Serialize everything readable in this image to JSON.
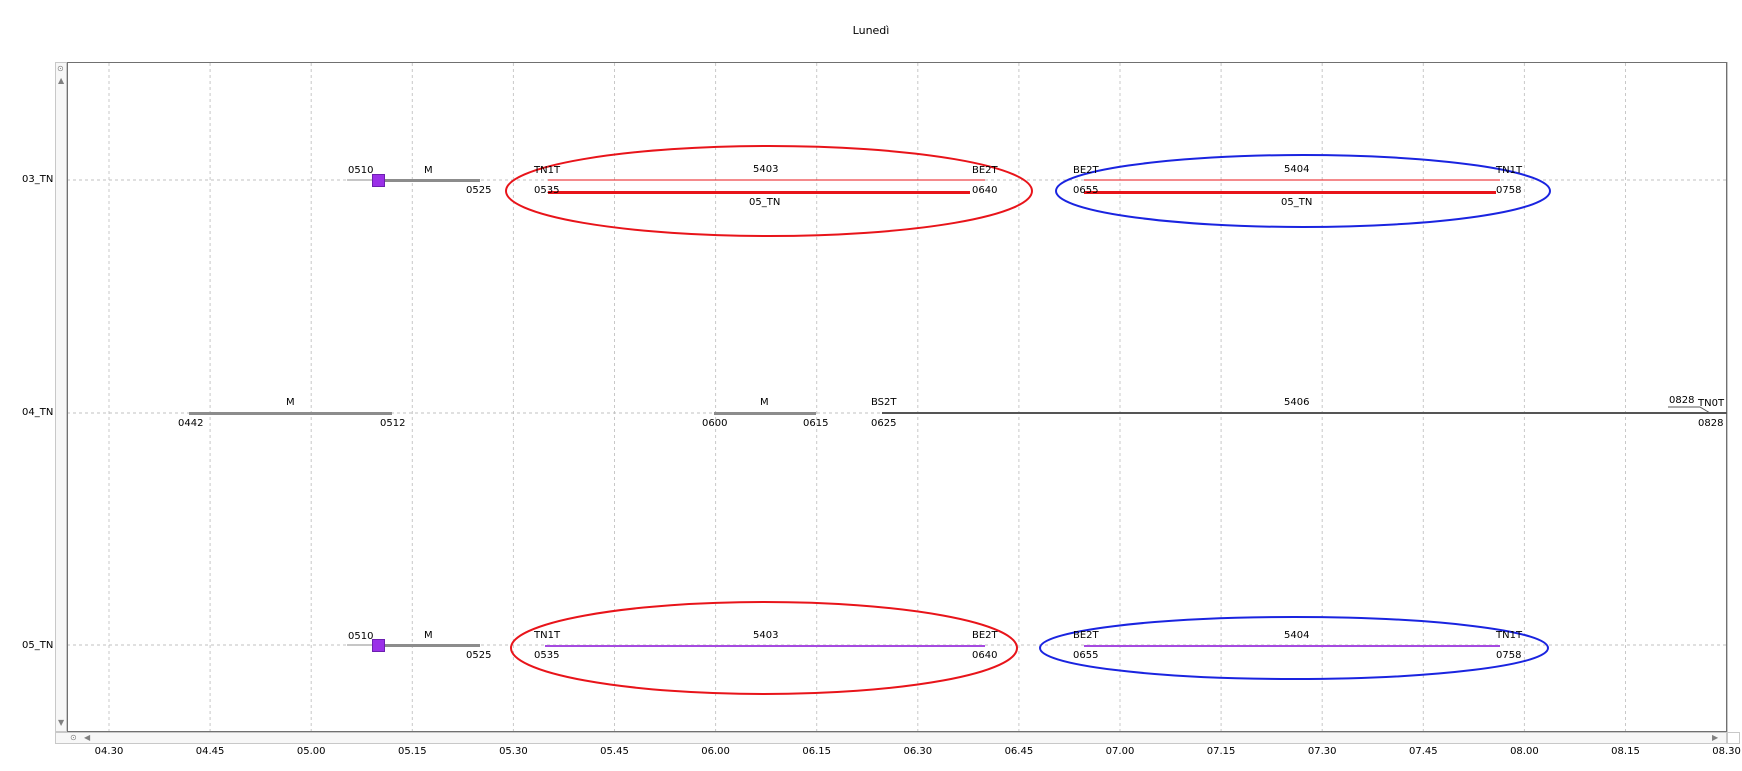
{
  "title": "Lunedì",
  "rows": [
    "03_TN",
    "04_TN",
    "05_TN"
  ],
  "time_axis": [
    "04.30",
    "04.45",
    "05.00",
    "05.15",
    "05.30",
    "05.45",
    "06.00",
    "06.15",
    "06.30",
    "06.45",
    "07.00",
    "07.15",
    "07.30",
    "07.45",
    "08.00",
    "08.15",
    "08.30"
  ],
  "row03": {
    "seg1": {
      "start": "0510",
      "label": "M",
      "end": "0525"
    },
    "seg2": {
      "from": "TN1T",
      "trip": "5403",
      "to": "BE2T",
      "start": "0535",
      "end": "0640",
      "linked": "05_TN"
    },
    "seg3": {
      "from": "BE2T",
      "trip": "5404",
      "to": "TN1T",
      "start": "0655",
      "end": "0758",
      "linked": "05_TN"
    }
  },
  "row04": {
    "seg1": {
      "label": "M",
      "start": "0442",
      "end": "0512"
    },
    "seg2": {
      "label": "M",
      "start": "0600",
      "end": "0615"
    },
    "seg3": {
      "from": "BS2T",
      "trip": "5406",
      "start": "0625",
      "end_top": "0828",
      "to": "TN0T",
      "end": "0828"
    }
  },
  "row05": {
    "seg1": {
      "start": "0510",
      "label": "M",
      "end": "0525"
    },
    "seg2": {
      "from": "TN1T",
      "trip": "5403",
      "to": "BE2T",
      "start": "0535",
      "end": "0640"
    },
    "seg3": {
      "from": "BE2T",
      "trip": "5404",
      "to": "TN1T",
      "start": "0655",
      "end": "0758"
    }
  },
  "colors": {
    "highlight_red": "#e8141a",
    "highlight_blue": "#1a24e0",
    "trip_purple": "#a64be0",
    "marker_purple": "#9b30e8",
    "maneuver_gray": "#8c8c8c"
  }
}
